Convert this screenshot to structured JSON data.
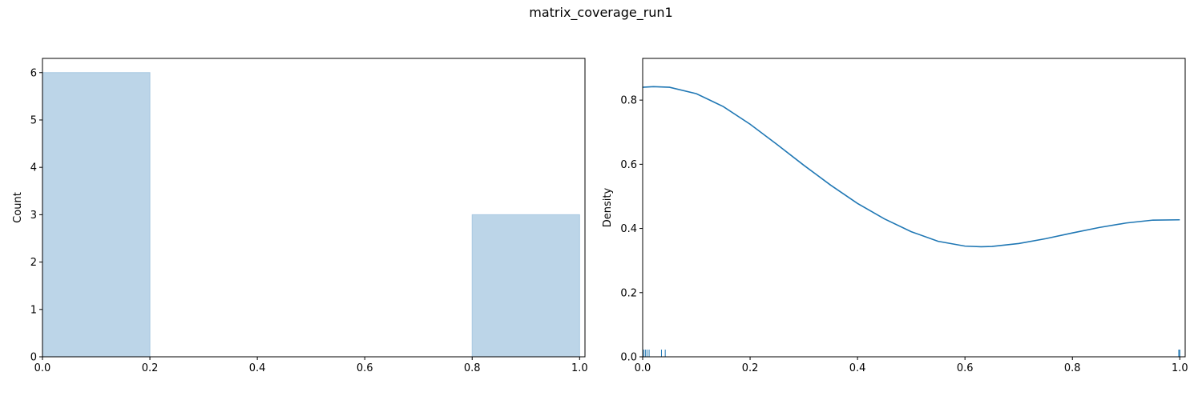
{
  "figure": {
    "title": "matrix_coverage_run1"
  },
  "chart_data": [
    {
      "type": "bar",
      "subtype": "histogram",
      "bins": [
        {
          "x0": 0.0,
          "x1": 0.2,
          "count": 6
        },
        {
          "x0": 0.2,
          "x1": 0.4,
          "count": 0
        },
        {
          "x0": 0.4,
          "x1": 0.6,
          "count": 0
        },
        {
          "x0": 0.6,
          "x1": 0.8,
          "count": 0
        },
        {
          "x0": 0.8,
          "x1": 1.0,
          "count": 3
        }
      ],
      "xlabel": "",
      "ylabel": "Count",
      "xlim": [
        0.0,
        1.01
      ],
      "ylim": [
        0,
        6.3
      ],
      "xticks": [
        "0.0",
        "0.2",
        "0.4",
        "0.6",
        "0.8",
        "1.0"
      ],
      "yticks": [
        "0",
        "1",
        "2",
        "3",
        "4",
        "5",
        "6"
      ],
      "bar_fill": "#bcd5e8",
      "bar_edge": "#a8c8e1",
      "grid": false
    },
    {
      "type": "line",
      "subtype": "kde_with_rug",
      "series": [
        {
          "x": [
            0.0,
            0.02,
            0.05,
            0.1,
            0.15,
            0.2,
            0.25,
            0.3,
            0.35,
            0.4,
            0.45,
            0.5,
            0.55,
            0.6,
            0.63,
            0.65,
            0.7,
            0.75,
            0.8,
            0.85,
            0.9,
            0.95,
            1.0
          ],
          "y": [
            0.84,
            0.842,
            0.84,
            0.82,
            0.78,
            0.725,
            0.662,
            0.597,
            0.535,
            0.478,
            0.43,
            0.39,
            0.36,
            0.345,
            0.343,
            0.344,
            0.353,
            0.368,
            0.386,
            0.403,
            0.417,
            0.426,
            0.427
          ]
        }
      ],
      "rug": [
        0.002,
        0.005,
        0.008,
        0.012,
        0.035,
        0.042,
        0.998,
        1.0,
        1.0
      ],
      "xlabel": "",
      "ylabel": "Density",
      "xlim": [
        0.0,
        1.01
      ],
      "ylim": [
        0.0,
        0.93
      ],
      "xticks": [
        "0.0",
        "0.2",
        "0.4",
        "0.6",
        "0.8",
        "1.0"
      ],
      "yticks": [
        "0.0",
        "0.2",
        "0.4",
        "0.6",
        "0.8"
      ],
      "line_color": "#1f77b4",
      "grid": false
    }
  ]
}
